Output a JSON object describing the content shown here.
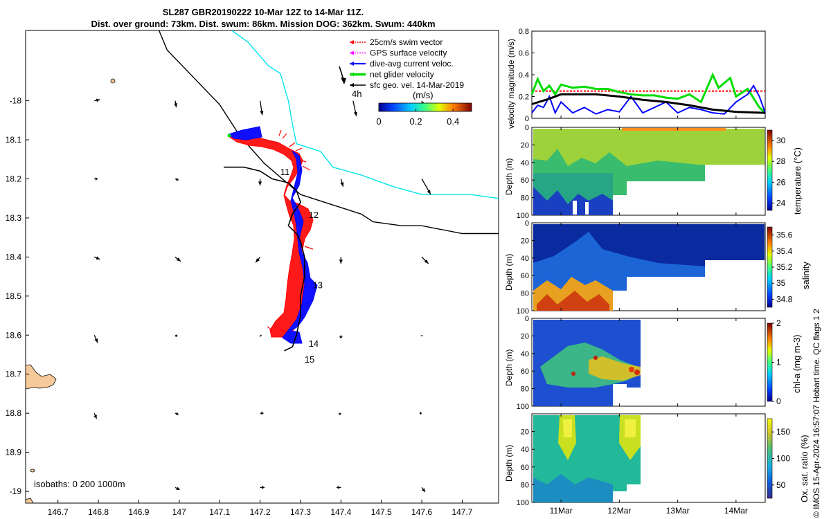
{
  "title_line1": "SL287 GBR20190222 10-Mar 12Z to 14-Mar 11Z.",
  "title_line2": "Dist. over ground: 73km. Dist. swum: 86km. Mission DOG: 362km. Swum: 440km",
  "credit": "© IMOS 15-Apr-2024 16:57:07 Hobart time. QC flags 1  2",
  "chart_data": [
    {
      "type": "map",
      "x_ticks": [
        "146.7",
        "146.8",
        "146.9",
        "147",
        "147.1",
        "147.2",
        "147.3",
        "147.4",
        "147.5",
        "147.6",
        "147.7"
      ],
      "y_ticks": [
        "-18",
        "18.1",
        "18.2",
        "18.3",
        "18.4",
        "18.5",
        "18.6",
        "18.7",
        "18.8",
        "18.9",
        "-19"
      ],
      "xlim": [
        146.62,
        147.79
      ],
      "ylim": [
        -19.03,
        -17.82
      ],
      "legend": [
        {
          "label": "25cm/s swim vector",
          "color": "#ff0000"
        },
        {
          "label": "GPS surface velocity",
          "color": "#ff00ff"
        },
        {
          "label": "dive-avg current veloc.",
          "color": "#0000ff"
        },
        {
          "label": "net glider velocity",
          "color": "#00dd00"
        },
        {
          "label": "sfc geo. vel. 14-Mar-2019",
          "color": "#000000"
        }
      ],
      "scale_arrow_label": "4h",
      "colorbar_title": "(m/s)",
      "colorbar_ticks": [
        "0",
        "0.2",
        "0.4"
      ],
      "colorbar_range": [
        0,
        0.5
      ],
      "day_labels": [
        {
          "text": "11",
          "lon": 147.25,
          "lat": -18.19
        },
        {
          "text": "12",
          "lon": 147.32,
          "lat": -18.3
        },
        {
          "text": "13",
          "lon": 147.33,
          "lat": -18.48
        },
        {
          "text": "14",
          "lon": 147.32,
          "lat": -18.63
        },
        {
          "text": "15",
          "lon": 147.31,
          "lat": -18.67
        }
      ],
      "isobaths_label": "isobaths: 0   200  1000m",
      "track": [
        [
          147.11,
          -18.17
        ],
        [
          147.16,
          -18.17
        ],
        [
          147.2,
          -18.18
        ],
        [
          147.23,
          -18.2
        ],
        [
          147.27,
          -18.21
        ],
        [
          147.29,
          -18.23
        ],
        [
          147.3,
          -18.26
        ],
        [
          147.28,
          -18.29
        ],
        [
          147.27,
          -18.32
        ],
        [
          147.29,
          -18.34
        ],
        [
          147.3,
          -18.36
        ],
        [
          147.31,
          -18.4
        ],
        [
          147.31,
          -18.45
        ],
        [
          147.3,
          -18.5
        ],
        [
          147.3,
          -18.55
        ],
        [
          147.29,
          -18.6
        ],
        [
          147.28,
          -18.63
        ],
        [
          147.26,
          -18.64
        ]
      ],
      "coast_line": [
        [
          146.95,
          -17.82
        ],
        [
          146.97,
          -17.87
        ],
        [
          147.1,
          -18.01
        ],
        [
          147.15,
          -18.09
        ],
        [
          147.21,
          -18.16
        ],
        [
          147.3,
          -18.24
        ],
        [
          147.36,
          -18.26
        ],
        [
          147.45,
          -18.29
        ],
        [
          147.48,
          -18.31
        ],
        [
          147.55,
          -18.32
        ],
        [
          147.6,
          -18.32
        ],
        [
          147.7,
          -18.34
        ],
        [
          147.79,
          -18.34
        ]
      ],
      "isobath_200": [
        [
          147.13,
          -17.82
        ],
        [
          147.17,
          -17.85
        ],
        [
          147.22,
          -17.91
        ],
        [
          147.25,
          -17.93
        ],
        [
          147.27,
          -18.0
        ],
        [
          147.28,
          -18.06
        ],
        [
          147.29,
          -18.11
        ],
        [
          147.32,
          -18.12
        ],
        [
          147.35,
          -18.13
        ],
        [
          147.38,
          -18.17
        ],
        [
          147.45,
          -18.19
        ],
        [
          147.53,
          -18.22
        ],
        [
          147.6,
          -18.24
        ],
        [
          147.72,
          -18.24
        ],
        [
          147.79,
          -18.25
        ]
      ],
      "current_arrows": [
        {
          "lon": 146.79,
          "lat": -18.0,
          "u": 0.05,
          "v": 0.01
        },
        {
          "lon": 146.99,
          "lat": -18.0,
          "u": 0.01,
          "v": -0.06
        },
        {
          "lon": 147.2,
          "lat": -18.0,
          "u": 0.02,
          "v": -0.13
        },
        {
          "lon": 147.43,
          "lat": -18.0,
          "u": 0.03,
          "v": -0.14
        },
        {
          "lon": 147.6,
          "lat": -18.0,
          "u": 0.01,
          "v": -0.04
        },
        {
          "lon": 146.79,
          "lat": -18.2,
          "u": 0.03,
          "v": 0.0
        },
        {
          "lon": 146.99,
          "lat": -18.2,
          "u": 0.03,
          "v": -0.01
        },
        {
          "lon": 147.2,
          "lat": -18.2,
          "u": 0.0,
          "v": -0.06
        },
        {
          "lon": 147.4,
          "lat": -18.2,
          "u": 0.02,
          "v": -0.07
        },
        {
          "lon": 147.6,
          "lat": -18.2,
          "u": 0.08,
          "v": -0.14
        },
        {
          "lon": 146.79,
          "lat": -18.4,
          "u": 0.05,
          "v": -0.02
        },
        {
          "lon": 146.99,
          "lat": -18.4,
          "u": 0.05,
          "v": -0.04
        },
        {
          "lon": 147.2,
          "lat": -18.4,
          "u": -0.04,
          "v": -0.05
        },
        {
          "lon": 147.4,
          "lat": -18.4,
          "u": 0.0,
          "v": -0.06
        },
        {
          "lon": 147.6,
          "lat": -18.4,
          "u": 0.06,
          "v": -0.06
        },
        {
          "lon": 146.79,
          "lat": -18.6,
          "u": 0.03,
          "v": -0.07
        },
        {
          "lon": 146.99,
          "lat": -18.6,
          "u": 0.02,
          "v": -0.01
        },
        {
          "lon": 147.2,
          "lat": -18.6,
          "u": 0.01,
          "v": -0.01
        },
        {
          "lon": 147.4,
          "lat": -18.6,
          "u": 0.0,
          "v": -0.03
        },
        {
          "lon": 147.6,
          "lat": -18.6,
          "u": 0.0,
          "v": -0.01
        },
        {
          "lon": 146.79,
          "lat": -18.8,
          "u": 0.02,
          "v": -0.05
        },
        {
          "lon": 146.99,
          "lat": -18.8,
          "u": 0.03,
          "v": -0.01
        },
        {
          "lon": 147.2,
          "lat": -18.8,
          "u": 0.03,
          "v": 0.0
        },
        {
          "lon": 147.4,
          "lat": -18.8,
          "u": -0.02,
          "v": -0.01
        },
        {
          "lon": 147.6,
          "lat": -18.8,
          "u": -0.02,
          "v": 0.0
        },
        {
          "lon": 146.99,
          "lat": -18.99,
          "u": 0.04,
          "v": -0.02
        },
        {
          "lon": 147.2,
          "lat": -18.99,
          "u": 0.04,
          "v": 0.0
        },
        {
          "lon": 147.4,
          "lat": -18.99,
          "u": -0.04,
          "v": 0.0
        },
        {
          "lon": 147.6,
          "lat": -18.99,
          "u": 0.03,
          "v": -0.04
        }
      ]
    },
    {
      "type": "line",
      "ylabel": "velocity magnitude (m/s)",
      "ylim": [
        0,
        0.8
      ],
      "y_ticks": [
        "0",
        "0.2",
        "0.4",
        "0.6",
        "0.8"
      ],
      "xlim": [
        10.5,
        14.5
      ],
      "series": [
        {
          "name": "swim speed",
          "color": "#ff0000",
          "style": "dashed",
          "x": [
            10.5,
            14.5
          ],
          "values": [
            0.25,
            0.25
          ]
        },
        {
          "name": "net glider velocity",
          "color": "#00dd00",
          "x": [
            10.5,
            10.6,
            10.7,
            10.8,
            10.9,
            11.0,
            11.2,
            11.4,
            11.6,
            11.8,
            12.0,
            12.2,
            12.4,
            12.6,
            12.8,
            13.0,
            13.2,
            13.4,
            13.6,
            13.7,
            13.9,
            14.0,
            14.2,
            14.4,
            14.5
          ],
          "values": [
            0.22,
            0.36,
            0.25,
            0.3,
            0.22,
            0.31,
            0.28,
            0.29,
            0.27,
            0.27,
            0.24,
            0.22,
            0.21,
            0.21,
            0.19,
            0.18,
            0.22,
            0.15,
            0.4,
            0.28,
            0.37,
            0.2,
            0.27,
            0.1,
            0.05
          ]
        },
        {
          "name": "dive-avg current",
          "color": "#0000ff",
          "x": [
            10.5,
            10.6,
            10.7,
            10.8,
            10.9,
            11.0,
            11.2,
            11.4,
            11.6,
            11.8,
            12.0,
            12.2,
            12.4,
            12.6,
            12.8,
            13.0,
            13.2,
            13.4,
            13.6,
            13.8,
            14.0,
            14.2,
            14.3,
            14.4,
            14.5
          ],
          "values": [
            0.05,
            0.12,
            0.1,
            0.2,
            0.05,
            0.15,
            0.05,
            0.1,
            0.04,
            0.08,
            0.06,
            0.2,
            0.05,
            0.1,
            0.15,
            0.05,
            0.1,
            0.08,
            0.05,
            0.04,
            0.15,
            0.22,
            0.3,
            0.2,
            0.05
          ]
        },
        {
          "name": "sfc geo. velocity",
          "color": "#000000",
          "x": [
            10.5,
            10.8,
            11.0,
            11.3,
            11.6,
            12.0,
            12.4,
            12.8,
            13.2,
            13.6,
            14.0,
            14.5
          ],
          "values": [
            0.13,
            0.18,
            0.22,
            0.22,
            0.22,
            0.2,
            0.17,
            0.15,
            0.12,
            0.08,
            0.06,
            0.05
          ]
        }
      ]
    },
    {
      "type": "heatmap",
      "variable": "temperature",
      "ylabel": "Depth (m)",
      "clabel": "temperature (°C)",
      "y_ticks": [
        "0",
        "20",
        "40",
        "60",
        "80",
        "100"
      ],
      "c_ticks": [
        "24",
        "26",
        "28",
        "30"
      ],
      "crange": [
        23.3,
        31
      ]
    },
    {
      "type": "heatmap",
      "variable": "salinity",
      "ylabel": "Depth (m)",
      "clabel": "salinity",
      "y_ticks": [
        "0",
        "20",
        "40",
        "60",
        "80",
        "100"
      ],
      "c_ticks": [
        "34.8",
        "35",
        "35.2",
        "35.4",
        "35.6"
      ],
      "crange": [
        34.7,
        35.7
      ]
    },
    {
      "type": "heatmap",
      "variable": "chl-a",
      "ylabel": "Depth (m)",
      "clabel": "chl-a (mg m-3)",
      "y_ticks": [
        "0",
        "20",
        "40",
        "60",
        "80",
        "100"
      ],
      "c_ticks": [
        "0",
        "1",
        "2"
      ],
      "crange": [
        0,
        2
      ]
    },
    {
      "type": "heatmap",
      "variable": "oxygen",
      "ylabel": "Depth (m)",
      "clabel": "Ox. sat. ratio (%)",
      "y_ticks": [
        "20",
        "40",
        "60",
        "80",
        "100"
      ],
      "c_ticks": [
        "50",
        "100",
        "150"
      ],
      "crange": [
        25,
        175
      ],
      "x_ticks": [
        "11Mar",
        "12Mar",
        "13Mar",
        "14Mar"
      ],
      "xlim": [
        10.5,
        14.5
      ]
    }
  ]
}
